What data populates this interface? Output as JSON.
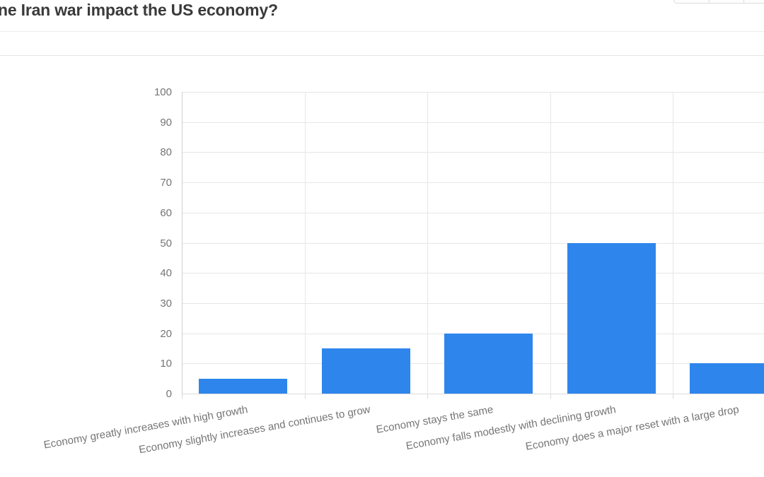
{
  "header": {
    "title": "ne Iran war impact the US economy?"
  },
  "toolbar": {
    "segment_count": 3
  },
  "chart_data": {
    "type": "bar",
    "title": "",
    "xlabel": "",
    "ylabel": "",
    "categories": [
      "Economy greatly increases with high growth",
      "Economy slightly increases and continues to grow",
      "Economy stays the same",
      "Economy falls modestly with declining growth",
      "Economy does a major reset with a large drop"
    ],
    "values": [
      5,
      15,
      20,
      50,
      10
    ],
    "ylim": [
      0,
      100
    ],
    "ytick_step": 10,
    "grid": true,
    "legend": "none",
    "bar_color": "#2e86ec",
    "axis_text_color": "#757575",
    "gridline_color": "#e6e6e6",
    "label_rotation_deg": -10
  }
}
